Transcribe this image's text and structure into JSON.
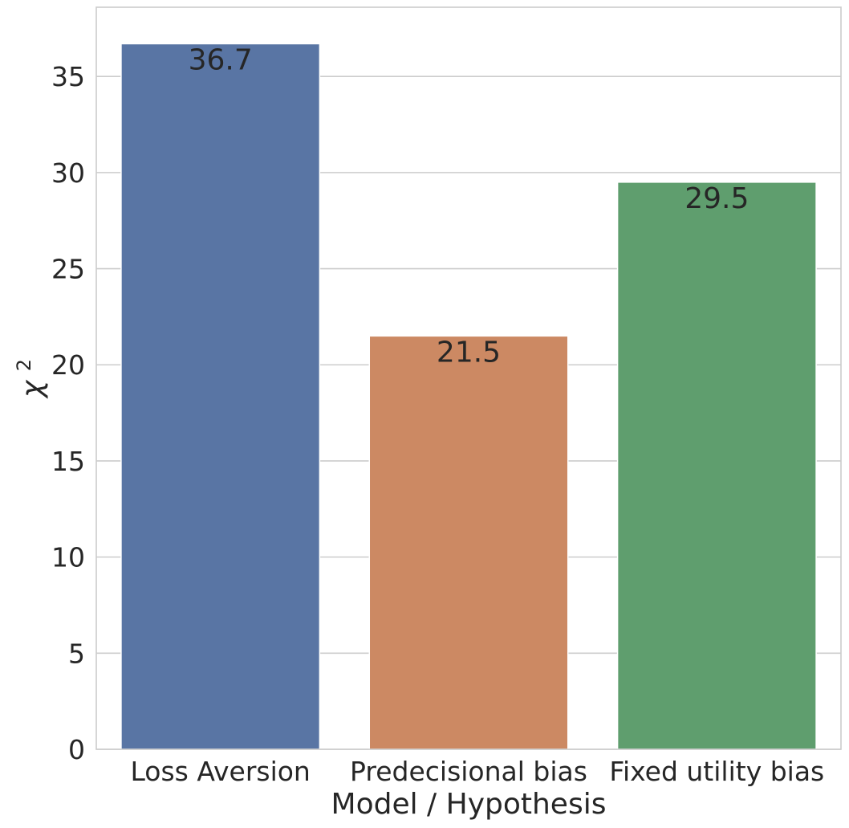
{
  "chart_data": {
    "type": "bar",
    "categories": [
      "Loss Aversion",
      "Predecisional bias",
      "Fixed utility bias"
    ],
    "values": [
      36.7,
      21.5,
      29.5
    ],
    "value_labels": [
      "36.7",
      "21.5",
      "29.5"
    ],
    "colors": [
      "#5975a4",
      "#cc8963",
      "#5f9e6e"
    ],
    "title": "",
    "xlabel": "Model / Hypothesis",
    "ylabel": "χ",
    "ylabel_superscript": "2",
    "ylim": [
      0,
      38.6
    ],
    "yticks": [
      0,
      5,
      10,
      15,
      20,
      25,
      30,
      35
    ],
    "grid": "horizontal"
  }
}
